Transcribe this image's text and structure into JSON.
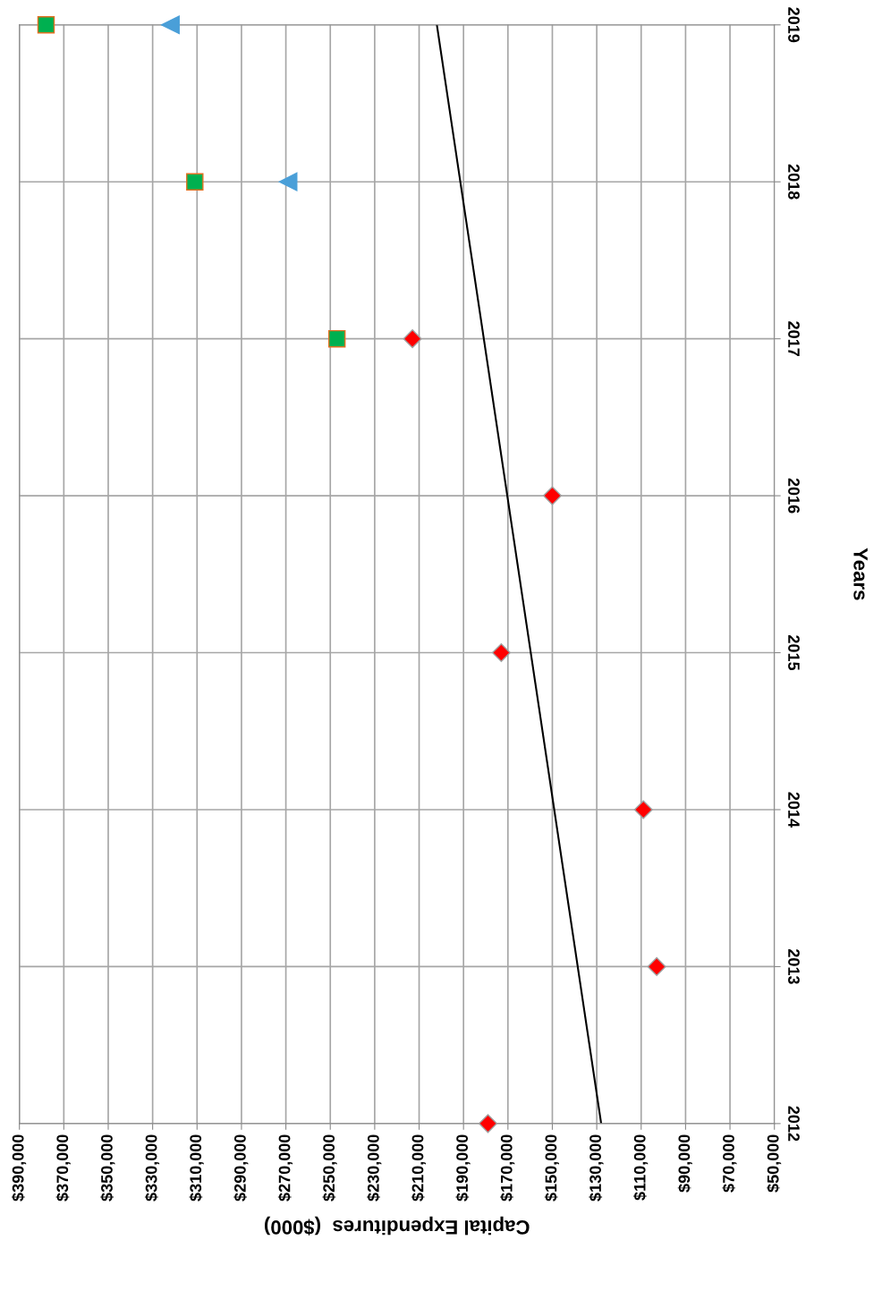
{
  "chart_data": {
    "type": "scatter",
    "xlabel": "Capital Expenditures  ($000)",
    "ylabel": "Years",
    "series": [
      {
        "marker": "diamond",
        "color": "#ff0000",
        "x": [
          179000,
          103000,
          109000,
          173000,
          150000,
          213000
        ],
        "values": [
          2012,
          2013,
          2014,
          2015,
          2016,
          2017
        ]
      },
      {
        "marker": "square",
        "color": "#00b050",
        "x": [
          247000,
          311000,
          378000
        ],
        "values": [
          2017,
          2018,
          2019
        ]
      },
      {
        "marker": "triangle",
        "color": "#4a9fd8",
        "x": [
          269000,
          322000
        ],
        "values": [
          2018,
          2019
        ]
      },
      {
        "type": "line",
        "marker": "none",
        "color": "#000000",
        "x": [
          128000,
          202000
        ],
        "values": [
          2012,
          2019
        ]
      }
    ],
    "ylim": [
      2012,
      2019
    ],
    "yticks": [
      2012,
      2013,
      2014,
      2015,
      2016,
      2017,
      2018,
      2019
    ],
    "xlim": [
      390000,
      50000
    ],
    "xticks": [
      {
        "value": 390000,
        "label": "$390,000"
      },
      {
        "value": 370000,
        "label": "$370,000"
      },
      {
        "value": 350000,
        "label": "$350,000"
      },
      {
        "value": 330000,
        "label": "$330,000"
      },
      {
        "value": 310000,
        "label": "$310,000"
      },
      {
        "value": 290000,
        "label": "$290,000"
      },
      {
        "value": 270000,
        "label": "$270,000"
      },
      {
        "value": 250000,
        "label": "$250,000"
      },
      {
        "value": 230000,
        "label": "$230,000"
      },
      {
        "value": 210000,
        "label": "$210,000"
      },
      {
        "value": 190000,
        "label": "$190,000"
      },
      {
        "value": 170000,
        "label": "$170,000"
      },
      {
        "value": 150000,
        "label": "$150,000"
      },
      {
        "value": 130000,
        "label": "$130,000"
      },
      {
        "value": 110000,
        "label": "$110,000"
      },
      {
        "value": 90000,
        "label": "$90,000"
      },
      {
        "value": 70000,
        "label": "$70,000"
      },
      {
        "value": 50000,
        "label": "$50,000"
      }
    ],
    "grid": true
  }
}
